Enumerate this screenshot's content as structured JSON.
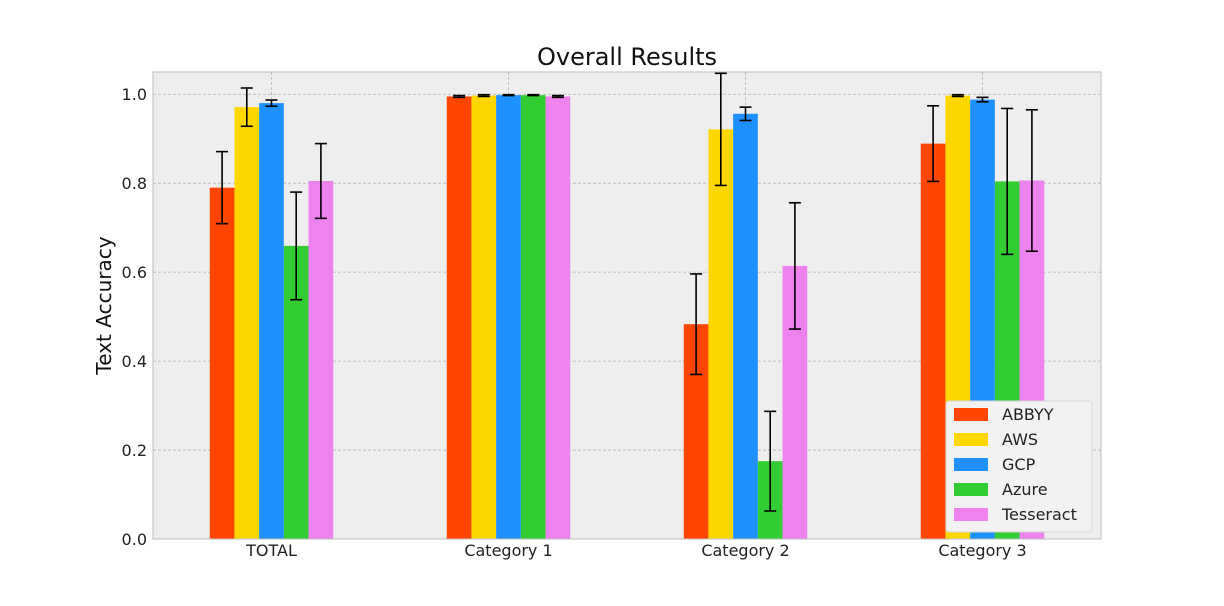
{
  "chart_data": {
    "type": "bar",
    "title": "Overall Results",
    "xlabel": "",
    "ylabel": "Text Accuracy",
    "categories": [
      "TOTAL",
      "Category 1",
      "Category 2",
      "Category 3"
    ],
    "ylim": [
      0.0,
      1.05
    ],
    "yticks": [
      "0.0",
      "0.2",
      "0.4",
      "0.6",
      "0.8",
      "1.0"
    ],
    "grid": true,
    "legend_position": "bottom-right",
    "series": [
      {
        "name": "ABBYY",
        "color": "#ff4500",
        "values": [
          0.79,
          0.995,
          0.483,
          0.889
        ],
        "errors": [
          0.081,
          0.002,
          0.113,
          0.085
        ]
      },
      {
        "name": "AWS",
        "color": "#ffd700",
        "values": [
          0.971,
          0.997,
          0.921,
          0.997
        ],
        "errors": [
          0.043,
          0.002,
          0.126,
          0.002
        ]
      },
      {
        "name": "GCP",
        "color": "#1e90ff",
        "values": [
          0.98,
          0.998,
          0.956,
          0.988
        ],
        "errors": [
          0.007,
          0.001,
          0.015,
          0.005
        ]
      },
      {
        "name": "Azure",
        "color": "#32cd32",
        "values": [
          0.659,
          0.998,
          0.175,
          0.804
        ],
        "errors": [
          0.121,
          0.001,
          0.112,
          0.164
        ]
      },
      {
        "name": "Tesseract",
        "color": "#ee82ee",
        "values": [
          0.805,
          0.995,
          0.614,
          0.806
        ],
        "errors": [
          0.084,
          0.002,
          0.142,
          0.159
        ]
      }
    ]
  }
}
